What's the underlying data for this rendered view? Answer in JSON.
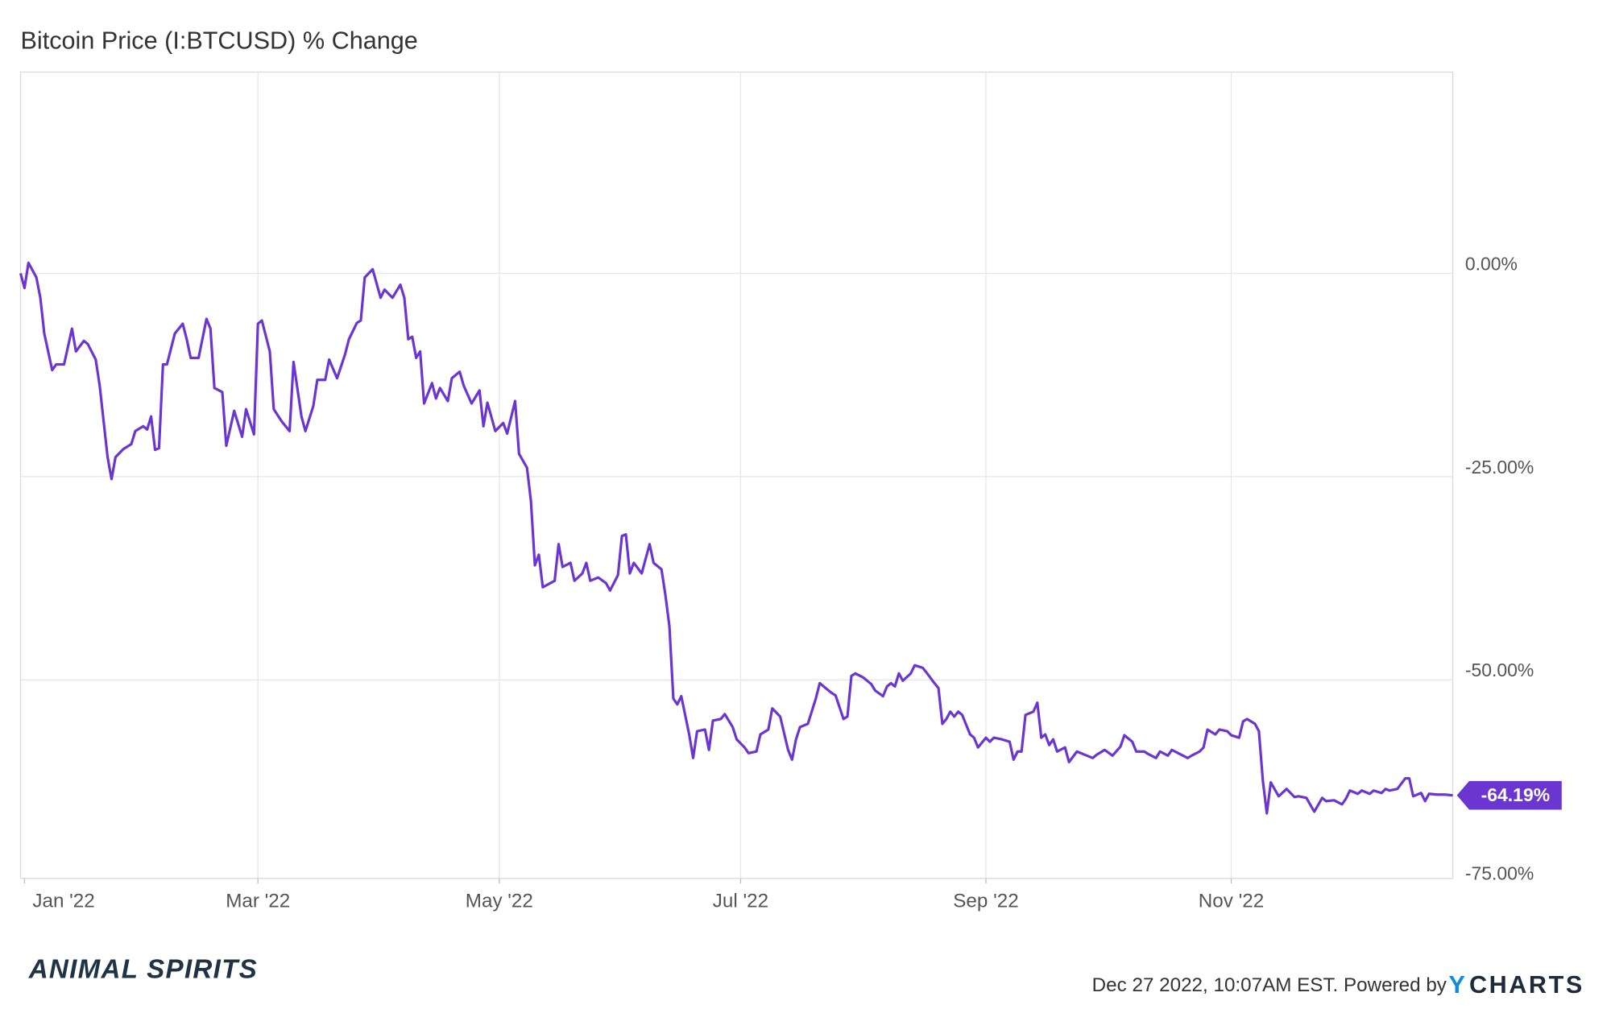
{
  "chart_data": {
    "type": "line",
    "title": "Bitcoin Price (I:BTCUSD) % Change",
    "watermark": "ANIMAL SPIRITS",
    "source": "Dec 27 2022, 10:07AM EST. Powered by",
    "brand_mark": "Y",
    "brand_name": "CHARTS",
    "series": [
      {
        "color": "#6a35d0",
        "x": [
          0,
          1,
          2,
          4,
          5,
          6,
          8,
          9,
          11,
          13,
          14,
          16,
          17,
          19,
          20,
          22,
          23,
          24,
          26,
          28,
          29,
          31,
          32,
          33,
          34,
          35,
          36,
          37,
          39,
          41,
          42,
          43,
          45,
          47,
          48,
          49,
          51,
          52,
          54,
          56,
          57,
          59,
          60,
          61,
          63,
          64,
          66,
          68,
          69,
          71,
          72,
          74,
          75,
          77,
          78,
          80,
          82,
          83,
          85,
          86,
          87,
          89,
          91,
          92,
          94,
          96,
          97,
          98,
          99,
          100,
          101,
          102,
          104,
          105,
          106,
          108,
          109,
          111,
          112,
          114,
          116,
          117,
          118,
          120,
          122,
          123,
          125,
          126,
          128,
          129,
          130,
          131,
          132,
          135,
          136,
          137,
          139,
          140,
          142,
          143,
          144,
          146,
          148,
          149,
          151,
          152,
          153,
          154,
          155,
          157,
          159,
          160,
          162,
          163,
          164,
          165,
          166,
          167,
          169,
          170,
          171,
          173,
          174,
          175,
          177,
          178,
          180,
          181,
          183,
          184,
          186,
          187,
          189,
          190,
          192,
          194,
          195,
          196,
          197,
          199,
          201,
          202,
          203,
          205,
          206,
          208,
          209,
          210,
          211,
          213,
          215,
          216,
          218,
          219,
          220,
          221,
          222,
          223,
          225,
          226,
          228,
          229,
          231,
          232,
          233,
          234,
          235,
          236,
          237,
          238,
          240,
          241,
          242,
          244,
          245,
          246,
          248,
          250,
          251,
          252,
          253,
          254,
          256,
          257,
          258,
          259,
          260,
          261,
          262,
          264,
          265,
          267,
          269,
          271,
          272,
          274,
          276,
          278,
          279,
          281,
          282,
          284,
          285,
          287,
          288,
          290,
          291,
          293,
          295,
          296,
          298,
          299,
          300,
          302,
          303,
          305,
          306,
          308,
          309,
          310,
          312,
          313,
          314,
          315,
          316,
          318,
          320,
          322,
          323,
          325,
          327,
          329,
          330,
          332,
          334,
          335,
          336,
          338,
          339,
          341,
          342,
          344,
          345,
          346,
          348,
          350,
          351,
          352,
          354,
          355,
          356,
          358,
          360,
          362
        ],
        "values": [
          0,
          -1.8,
          1.3,
          -0.5,
          -3.0,
          -7.4,
          -11.9,
          -11.2,
          -11.2,
          -6.8,
          -9.6,
          -8.3,
          -8.7,
          -10.6,
          -13.8,
          -22.6,
          -25.3,
          -22.6,
          -21.6,
          -21.0,
          -19.4,
          -18.8,
          -19.2,
          -17.6,
          -21.7,
          -21.5,
          -11.2,
          -11.2,
          -7.4,
          -6.2,
          -8.1,
          -10.4,
          -10.4,
          -5.6,
          -6.8,
          -14.1,
          -14.6,
          -21.2,
          -16.9,
          -20.1,
          -16.7,
          -19.8,
          -6.2,
          -5.8,
          -9.6,
          -16.7,
          -18.2,
          -19.4,
          -10.9,
          -17.6,
          -19.4,
          -16.3,
          -13.1,
          -13.1,
          -10.6,
          -12.9,
          -10.0,
          -8.1,
          -6.1,
          -5.8,
          -0.5,
          0.5,
          -3.0,
          -2.0,
          -3.0,
          -1.4,
          -3.0,
          -8.1,
          -7.8,
          -10.4,
          -9.6,
          -16.0,
          -13.5,
          -15.4,
          -14.1,
          -15.7,
          -12.9,
          -12.1,
          -13.8,
          -16.0,
          -14.4,
          -18.8,
          -15.9,
          -19.4,
          -18.4,
          -19.7,
          -15.7,
          -22.2,
          -23.9,
          -28.0,
          -35.9,
          -34.6,
          -38.6,
          -37.8,
          -33.3,
          -36.1,
          -35.6,
          -37.8,
          -36.9,
          -35.6,
          -37.8,
          -37.4,
          -38.1,
          -39.0,
          -37.1,
          -32.3,
          -32.1,
          -36.9,
          -35.6,
          -36.9,
          -33.3,
          -35.6,
          -36.4,
          -39.6,
          -43.4,
          -52.3,
          -53.0,
          -52.0,
          -56.7,
          -59.6,
          -56.3,
          -56.1,
          -58.6,
          -55.0,
          -54.8,
          -54.2,
          -55.8,
          -57.3,
          -58.3,
          -59.0,
          -58.8,
          -56.7,
          -56.1,
          -53.5,
          -54.5,
          -58.6,
          -59.8,
          -57.3,
          -55.8,
          -55.4,
          -52.3,
          -50.4,
          -50.8,
          -51.6,
          -51.9,
          -54.8,
          -54.5,
          -49.5,
          -49.2,
          -49.7,
          -50.5,
          -51.3,
          -52.0,
          -50.8,
          -50.4,
          -50.8,
          -49.2,
          -50.1,
          -49.2,
          -48.2,
          -48.5,
          -49.1,
          -50.4,
          -51.0,
          -55.4,
          -54.8,
          -53.9,
          -54.5,
          -53.9,
          -54.3,
          -56.7,
          -57.1,
          -58.3,
          -57.1,
          -57.6,
          -57.1,
          -57.3,
          -57.6,
          -59.8,
          -58.8,
          -58.8,
          -54.3,
          -53.9,
          -52.8,
          -57.1,
          -56.7,
          -58.0,
          -57.3,
          -58.8,
          -58.3,
          -60.1,
          -58.8,
          -59.2,
          -59.6,
          -59.2,
          -58.6,
          -59.3,
          -58.2,
          -56.8,
          -57.6,
          -58.8,
          -58.8,
          -59.1,
          -59.6,
          -58.8,
          -59.3,
          -58.6,
          -59.1,
          -59.6,
          -59.3,
          -58.8,
          -58.3,
          -56.1,
          -56.7,
          -56.1,
          -56.3,
          -56.8,
          -57.1,
          -55.1,
          -54.8,
          -55.4,
          -56.3,
          -62.4,
          -66.4,
          -62.6,
          -64.3,
          -63.4,
          -64.4,
          -64.3,
          -64.5,
          -66.2,
          -64.5,
          -64.9,
          -64.8,
          -65.3,
          -64.6,
          -63.6,
          -64.0,
          -63.6,
          -64.0,
          -63.6,
          -63.9,
          -63.4,
          -63.6,
          -63.4,
          -62.1,
          -62.1,
          -64.3,
          -63.9,
          -64.9,
          -64.0,
          -64.1,
          -64.1,
          -64.19
        ]
      }
    ],
    "end_label": {
      "value": -64.19,
      "label": "-64.19%"
    },
    "xlim": [
      0,
      362
    ],
    "xticks": [
      {
        "value": 1,
        "label": "Jan '22"
      },
      {
        "value": 60,
        "label": "Mar '22"
      },
      {
        "value": 121,
        "label": "May '22"
      },
      {
        "value": 182,
        "label": "Jul '22"
      },
      {
        "value": 244,
        "label": "Sep '22"
      },
      {
        "value": 306,
        "label": "Nov '22"
      }
    ],
    "ylim": [
      -74.4,
      24.75
    ],
    "yticks": [
      {
        "value": 0,
        "label": "0.00%"
      },
      {
        "value": -25,
        "label": "-25.00%"
      },
      {
        "value": -50,
        "label": "-50.00%"
      },
      {
        "value": -75,
        "label": "-75.00%"
      }
    ],
    "grid": true
  }
}
